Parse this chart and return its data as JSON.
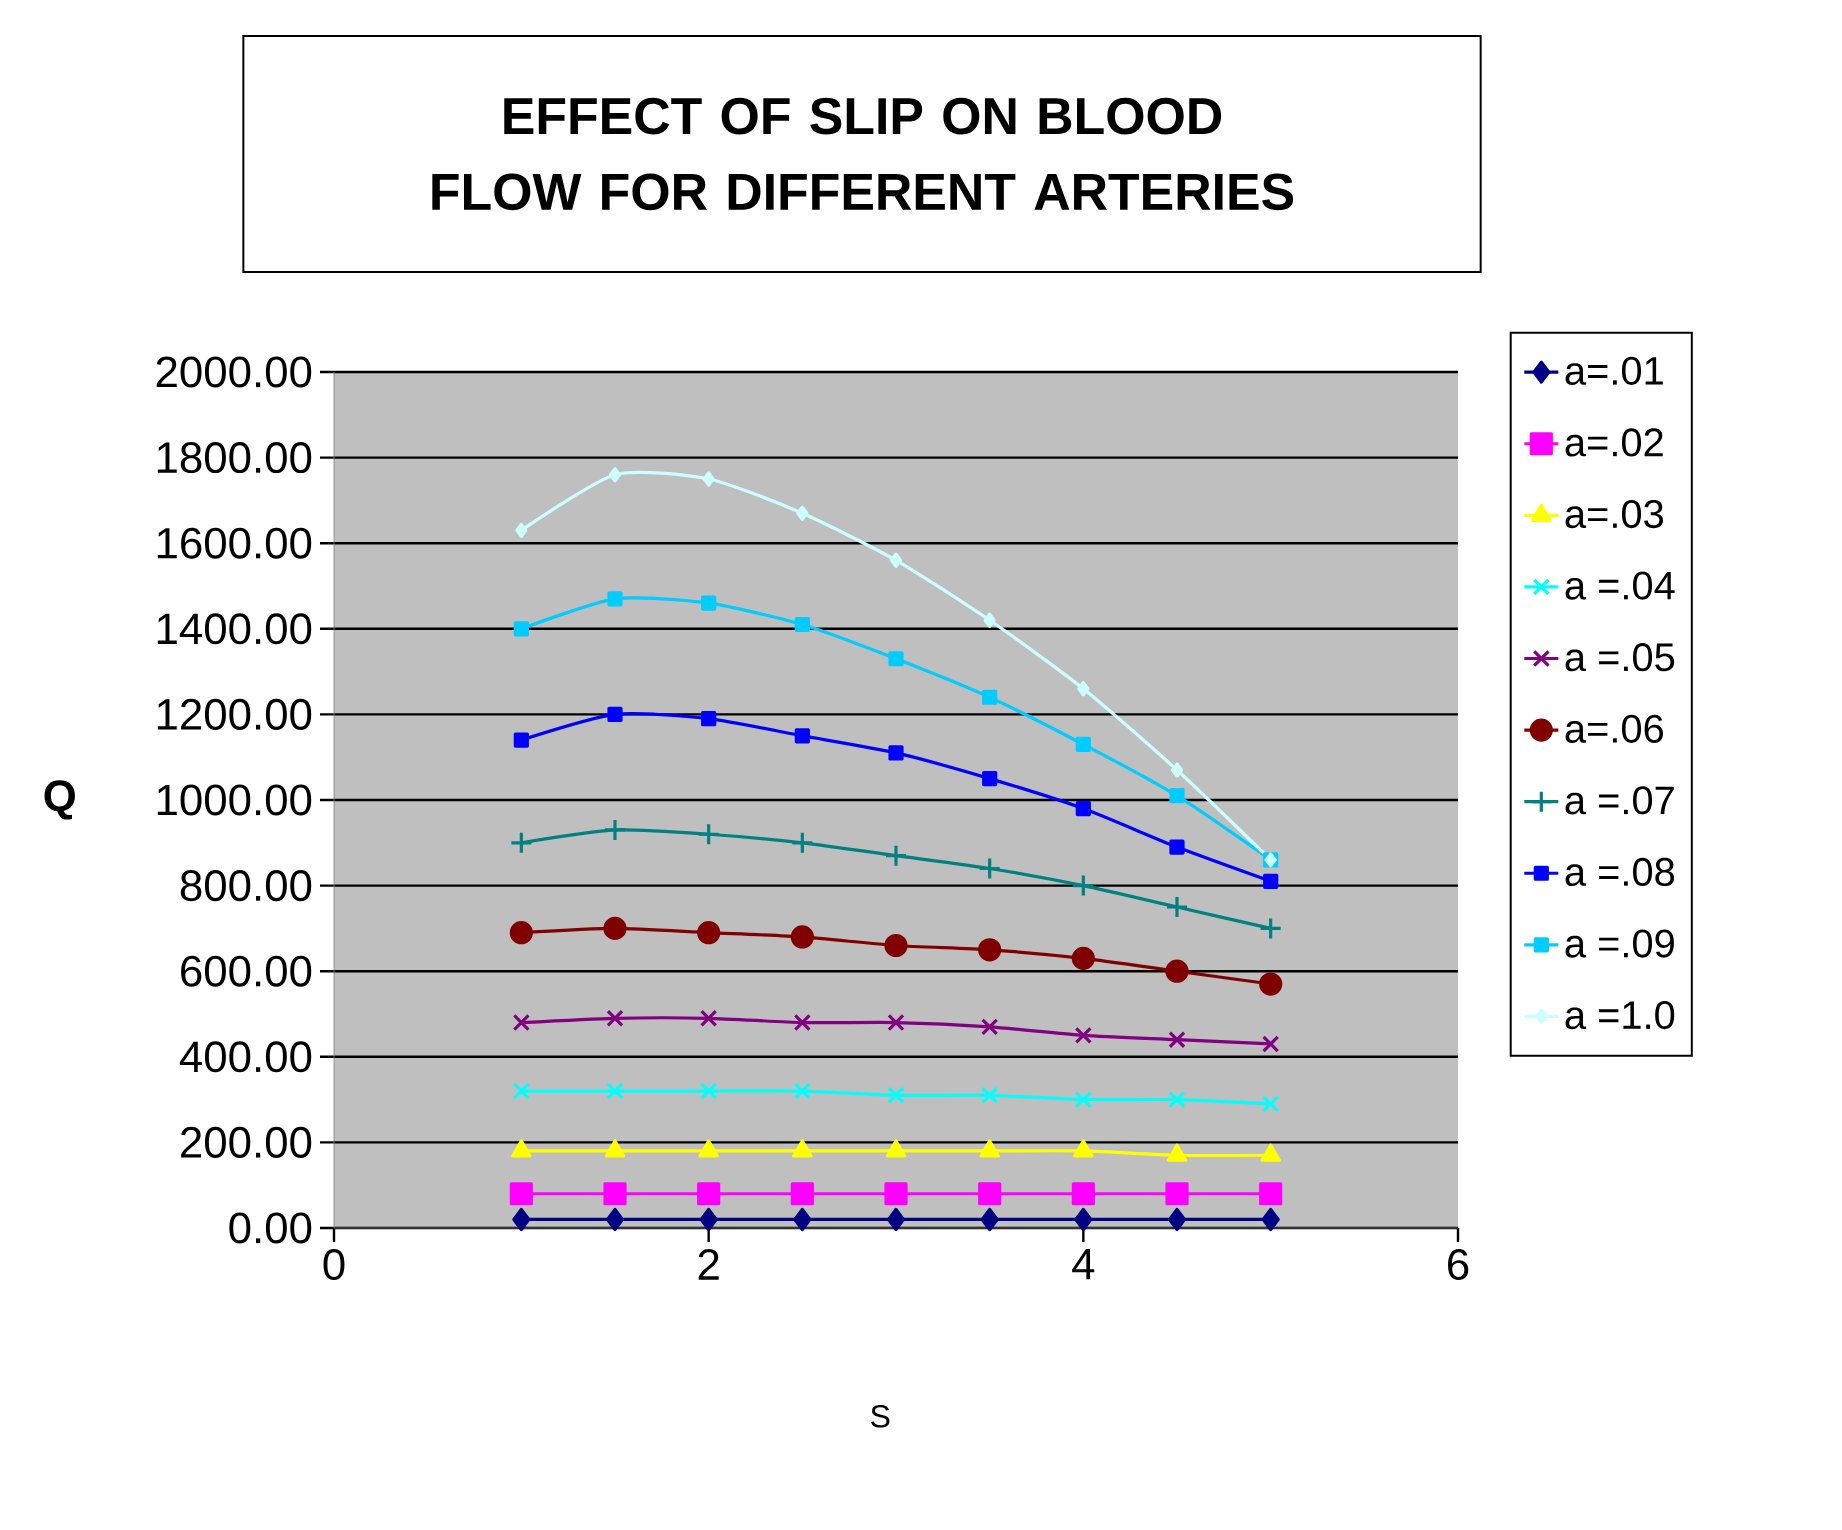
{
  "chart_data": {
    "type": "line",
    "title": "EFFECT OF SLIP ON BLOOD FLOW FOR DIFFERENT ARTERIES",
    "xlabel": "S",
    "ylabel": "Q",
    "x": [
      1,
      1.5,
      2,
      2.5,
      3,
      3.5,
      4,
      4.5,
      5
    ],
    "xlim": [
      0,
      6
    ],
    "xticks": [
      0,
      2,
      4,
      6
    ],
    "ylim": [
      0,
      2000
    ],
    "yticks": [
      {
        "value": 0,
        "label": "0.00"
      },
      {
        "value": 200,
        "label": "200.00"
      },
      {
        "value": 400,
        "label": "400.00"
      },
      {
        "value": 600,
        "label": "600.00"
      },
      {
        "value": 800,
        "label": "800.00"
      },
      {
        "value": 1000,
        "label": "1000.00"
      },
      {
        "value": 1200,
        "label": "1200.00"
      },
      {
        "value": 1400,
        "label": "1400.00"
      },
      {
        "value": 1600,
        "label": "1600.00"
      },
      {
        "value": 1800,
        "label": "1800.00"
      },
      {
        "value": 2000,
        "label": "2000.00"
      }
    ],
    "grid": "y",
    "legend": "right",
    "series": [
      {
        "name": "a=.01",
        "color": "#000080",
        "marker": "diamond",
        "values": [
          20,
          20,
          20,
          20,
          20,
          20,
          20,
          20,
          20
        ]
      },
      {
        "name": "a=.02",
        "color": "#ff00ff",
        "marker": "square",
        "values": [
          80,
          80,
          80,
          80,
          80,
          80,
          80,
          80,
          80
        ]
      },
      {
        "name": "a=.03",
        "color": "#ffff00",
        "marker": "triangle",
        "values": [
          180,
          180,
          180,
          180,
          180,
          180,
          180,
          170,
          170
        ]
      },
      {
        "name": "a =.04",
        "color": "#00ffff",
        "marker": "cross",
        "values": [
          320,
          320,
          320,
          320,
          310,
          310,
          300,
          300,
          290
        ]
      },
      {
        "name": "a =.05",
        "color": "#800080",
        "marker": "cross",
        "values": [
          480,
          490,
          490,
          480,
          480,
          470,
          450,
          440,
          430
        ]
      },
      {
        "name": "a=.06",
        "color": "#800000",
        "marker": "circle",
        "values": [
          690,
          700,
          690,
          680,
          660,
          650,
          630,
          600,
          570
        ]
      },
      {
        "name": "a =.07",
        "color": "#008080",
        "marker": "plus",
        "values": [
          900,
          930,
          920,
          900,
          870,
          840,
          800,
          750,
          700
        ]
      },
      {
        "name": "a =.08",
        "color": "#0000ff",
        "marker": "square",
        "values": [
          1140,
          1200,
          1190,
          1150,
          1110,
          1050,
          980,
          890,
          810
        ]
      },
      {
        "name": "a =.09",
        "color": "#00ccff",
        "marker": "square",
        "values": [
          1400,
          1470,
          1460,
          1410,
          1330,
          1240,
          1130,
          1010,
          860
        ]
      },
      {
        "name": "a =1.0",
        "color": "#ccffff",
        "marker": "diamond",
        "values": [
          1630,
          1760,
          1750,
          1670,
          1560,
          1420,
          1260,
          1070,
          860
        ]
      }
    ]
  }
}
